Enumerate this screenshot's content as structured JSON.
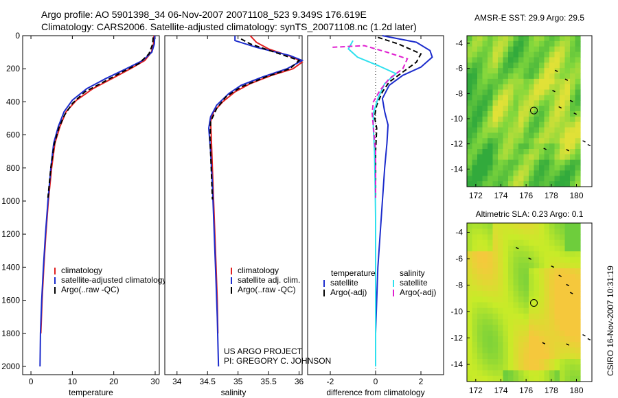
{
  "header": {
    "line1": "Argo profile: AO 5901398_34 06-Nov-2007 20071108_523 9.349S 176.619E",
    "line2": "Climatology: CARS2006. Satellite-adjusted climatology: synTS_20071108.nc (1.2d later)"
  },
  "footer": {
    "project": "US ARGO PROJECT",
    "pi": "PI: GREGORY C. JOHNSON",
    "stamp": "CSIRO 16-Nov-2007 10:31:19"
  },
  "colors": {
    "clim": "#e02020",
    "sat": "#1c2ccc",
    "argo": "#000000",
    "sat_cyan": "#2ee0ee",
    "argo_mag": "#e020d0"
  },
  "chart_data": [
    {
      "id": "temperature",
      "type": "line",
      "xlabel": "temperature",
      "ylabel": "",
      "xlim": [
        -2,
        31
      ],
      "ylim": [
        0,
        2050
      ],
      "y_reversed": true,
      "xticks": [
        0,
        10,
        20,
        30
      ],
      "yticks": [
        0,
        200,
        400,
        600,
        800,
        1000,
        1200,
        1400,
        1600,
        1800,
        2000
      ],
      "legend": [
        "climatology",
        "satellite-adjusted climatology",
        "Argo(..raw -QC)"
      ],
      "series": [
        {
          "name": "climatology",
          "color_key": "clim",
          "points": [
            [
              29.7,
              0
            ],
            [
              29.6,
              50
            ],
            [
              29.1,
              100
            ],
            [
              27.5,
              150
            ],
            [
              24,
              200
            ],
            [
              19.5,
              260
            ],
            [
              15,
              320
            ],
            [
              11,
              390
            ],
            [
              8.5,
              460
            ],
            [
              7,
              550
            ],
            [
              5.8,
              650
            ],
            [
              5,
              800
            ],
            [
              4.2,
              1000
            ],
            [
              3.6,
              1200
            ],
            [
              3.1,
              1400
            ],
            [
              2.7,
              1600
            ],
            [
              2.4,
              1800
            ]
          ]
        },
        {
          "name": "satellite-adjusted climatology",
          "color_key": "sat",
          "points": [
            [
              29.9,
              0
            ],
            [
              29.8,
              50
            ],
            [
              29.2,
              100
            ],
            [
              27,
              150
            ],
            [
              23,
              200
            ],
            [
              18,
              260
            ],
            [
              13.5,
              320
            ],
            [
              10,
              390
            ],
            [
              8,
              460
            ],
            [
              6.6,
              550
            ],
            [
              5.5,
              650
            ],
            [
              4.8,
              800
            ],
            [
              4.1,
              1000
            ],
            [
              3.5,
              1200
            ],
            [
              3,
              1400
            ],
            [
              2.6,
              1600
            ],
            [
              2.3,
              1800
            ],
            [
              2.2,
              2000
            ]
          ]
        },
        {
          "name": "Argo(..raw -QC)",
          "color_key": "argo",
          "dashed": true,
          "points": [
            [
              29.5,
              10
            ],
            [
              29.4,
              50
            ],
            [
              28.5,
              110
            ],
            [
              26,
              170
            ],
            [
              22,
              220
            ],
            [
              17.5,
              280
            ],
            [
              13,
              340
            ],
            [
              10,
              410
            ],
            [
              8.1,
              480
            ],
            [
              6.7,
              560
            ],
            [
              5.6,
              660
            ],
            [
              4.8,
              800
            ],
            [
              4.1,
              980
            ]
          ]
        }
      ]
    },
    {
      "id": "salinity",
      "type": "line",
      "xlabel": "salinity",
      "ylabel": "",
      "xlim": [
        33.8,
        36.05
      ],
      "ylim": [
        0,
        2050
      ],
      "y_reversed": true,
      "xticks": [
        34,
        34.5,
        35,
        35.5,
        36
      ],
      "yticks": [],
      "legend": [
        "climatology",
        "satellite adj. clim.",
        "Argo(..raw -QC)"
      ],
      "series": [
        {
          "name": "climatology",
          "color_key": "clim",
          "points": [
            [
              35.2,
              0
            ],
            [
              35.3,
              40
            ],
            [
              35.5,
              80
            ],
            [
              35.9,
              130
            ],
            [
              36.05,
              160
            ],
            [
              35.9,
              200
            ],
            [
              35.55,
              240
            ],
            [
              35.2,
              290
            ],
            [
              34.95,
              340
            ],
            [
              34.75,
              400
            ],
            [
              34.6,
              460
            ],
            [
              34.55,
              520
            ],
            [
              34.56,
              600
            ],
            [
              34.58,
              800
            ],
            [
              34.6,
              1000
            ],
            [
              34.62,
              1200
            ],
            [
              34.64,
              1400
            ],
            [
              34.66,
              1600
            ],
            [
              34.67,
              1800
            ]
          ]
        },
        {
          "name": "satellite adj. clim.",
          "color_key": "sat",
          "points": [
            [
              34.95,
              0
            ],
            [
              34.95,
              30
            ],
            [
              35.3,
              70
            ],
            [
              35.85,
              120
            ],
            [
              36.05,
              150
            ],
            [
              35.8,
              200
            ],
            [
              35.4,
              250
            ],
            [
              35.05,
              300
            ],
            [
              34.85,
              350
            ],
            [
              34.65,
              420
            ],
            [
              34.55,
              490
            ],
            [
              34.52,
              560
            ],
            [
              34.55,
              700
            ],
            [
              34.58,
              900
            ],
            [
              34.6,
              1100
            ],
            [
              34.62,
              1300
            ],
            [
              34.64,
              1500
            ],
            [
              34.66,
              1700
            ],
            [
              34.67,
              1850
            ],
            [
              34.68,
              2000
            ]
          ]
        },
        {
          "name": "Argo(..raw -QC)",
          "color_key": "argo",
          "dashed": true,
          "points": [
            [
              35.05,
              20
            ],
            [
              35.2,
              50
            ],
            [
              35.6,
              100
            ],
            [
              36,
              150
            ],
            [
              35.85,
              200
            ],
            [
              35.45,
              250
            ],
            [
              35.05,
              310
            ],
            [
              34.8,
              370
            ],
            [
              34.65,
              440
            ],
            [
              34.55,
              520
            ],
            [
              34.54,
              620
            ],
            [
              34.56,
              800
            ],
            [
              34.58,
              990
            ]
          ]
        }
      ]
    },
    {
      "id": "difference",
      "type": "line",
      "xlabel": "difference from climatology",
      "ylabel": "",
      "xlim": [
        -3,
        3
      ],
      "ylim": [
        0,
        2050
      ],
      "y_reversed": true,
      "xticks": [
        -2,
        0,
        2
      ],
      "yticks": [],
      "legend": [
        "temperature",
        "satellite",
        "Argo(-adj)",
        "salinity",
        "satellite",
        "Argo(-adj)"
      ],
      "series": [
        {
          "name": "temperature satellite",
          "color_key": "sat",
          "points": [
            [
              0.3,
              0
            ],
            [
              1.8,
              40
            ],
            [
              2.4,
              90
            ],
            [
              2.5,
              130
            ],
            [
              2,
              190
            ],
            [
              1.2,
              240
            ],
            [
              0.6,
              300
            ],
            [
              0.3,
              380
            ],
            [
              0.4,
              460
            ],
            [
              0.55,
              540
            ],
            [
              0.5,
              650
            ],
            [
              0.4,
              800
            ],
            [
              0.3,
              1000
            ],
            [
              0.2,
              1200
            ],
            [
              0.1,
              1400
            ],
            [
              0.05,
              1600
            ],
            [
              0,
              1800
            ],
            [
              0,
              2000
            ]
          ]
        },
        {
          "name": "temperature Argo(-adj)",
          "color_key": "argo",
          "dashed": true,
          "points": [
            [
              0.1,
              10
            ],
            [
              1,
              50
            ],
            [
              2,
              110
            ],
            [
              1.8,
              160
            ],
            [
              1.2,
              220
            ],
            [
              0.6,
              280
            ],
            [
              0.3,
              340
            ],
            [
              0.05,
              420
            ],
            [
              -0.05,
              490
            ],
            [
              0.05,
              560
            ],
            [
              0,
              700
            ],
            [
              0,
              850
            ],
            [
              0,
              980
            ]
          ]
        },
        {
          "name": "salinity satellite",
          "color_key": "sat_cyan",
          "points": [
            [
              -1,
              30
            ],
            [
              -1.2,
              80
            ],
            [
              -0.8,
              130
            ],
            [
              0.1,
              180
            ],
            [
              0.9,
              230
            ],
            [
              0.4,
              290
            ],
            [
              0.1,
              380
            ],
            [
              -0.1,
              470
            ],
            [
              -0.1,
              560
            ],
            [
              -0.05,
              700
            ],
            [
              -0.02,
              900
            ],
            [
              0,
              1100
            ],
            [
              0,
              1300
            ],
            [
              0,
              1500
            ],
            [
              0,
              1700
            ],
            [
              0,
              1900
            ],
            [
              0,
              2000
            ]
          ]
        },
        {
          "name": "salinity Argo(-adj)",
          "color_key": "argo_mag",
          "dashed": true,
          "points": [
            [
              -1.9,
              70
            ],
            [
              -0.5,
              60
            ],
            [
              0.5,
              100
            ],
            [
              1.4,
              140
            ],
            [
              1.2,
              200
            ],
            [
              0.6,
              260
            ],
            [
              0.2,
              330
            ],
            [
              -0.1,
              400
            ],
            [
              -0.15,
              470
            ],
            [
              -0.1,
              550
            ],
            [
              0,
              700
            ],
            [
              0,
              850
            ],
            [
              0,
              980
            ]
          ]
        }
      ]
    },
    {
      "id": "sst_map",
      "type": "heatmap",
      "title": "AMSR-E SST: 29.9  Argo: 29.5",
      "xlim": [
        171.3,
        180.3
      ],
      "ylim": [
        -15.4,
        -3.4
      ],
      "xticks": [
        172,
        174,
        176,
        178,
        180
      ],
      "yticks": [
        -4,
        -6,
        -8,
        -10,
        -12,
        -14
      ],
      "argo_position": [
        176.619,
        -9.349
      ],
      "track_points": [
        [
          178.4,
          -6.2
        ],
        [
          179.2,
          -6.9
        ],
        [
          178.2,
          -7.8
        ],
        [
          179.6,
          -8.6
        ],
        [
          178.7,
          -9.1
        ],
        [
          179.9,
          -9.6
        ],
        [
          180.6,
          -11.8
        ],
        [
          181,
          -12.1
        ],
        [
          177.5,
          -12.4
        ],
        [
          179.3,
          -12.5
        ]
      ]
    },
    {
      "id": "sla_map",
      "type": "heatmap",
      "title": "Altimetric SLA: 0.23  Argo: 0.1",
      "xlim": [
        171.3,
        180.3
      ],
      "ylim": [
        -15.3,
        -3.3
      ],
      "xticks": [
        172,
        174,
        176,
        178,
        180
      ],
      "yticks": [
        -4,
        -6,
        -8,
        -10,
        -12,
        -14
      ],
      "argo_position": [
        176.619,
        -9.349
      ],
      "track_points": [
        [
          175.3,
          -5.2
        ],
        [
          176.3,
          -6
        ],
        [
          178.1,
          -6.6
        ],
        [
          178.7,
          -7.3
        ],
        [
          179.3,
          -8
        ],
        [
          179.6,
          -8.6
        ],
        [
          180.6,
          -11.8
        ],
        [
          181,
          -12.1
        ],
        [
          179.3,
          -12.5
        ],
        [
          177.4,
          -12.4
        ]
      ]
    }
  ]
}
